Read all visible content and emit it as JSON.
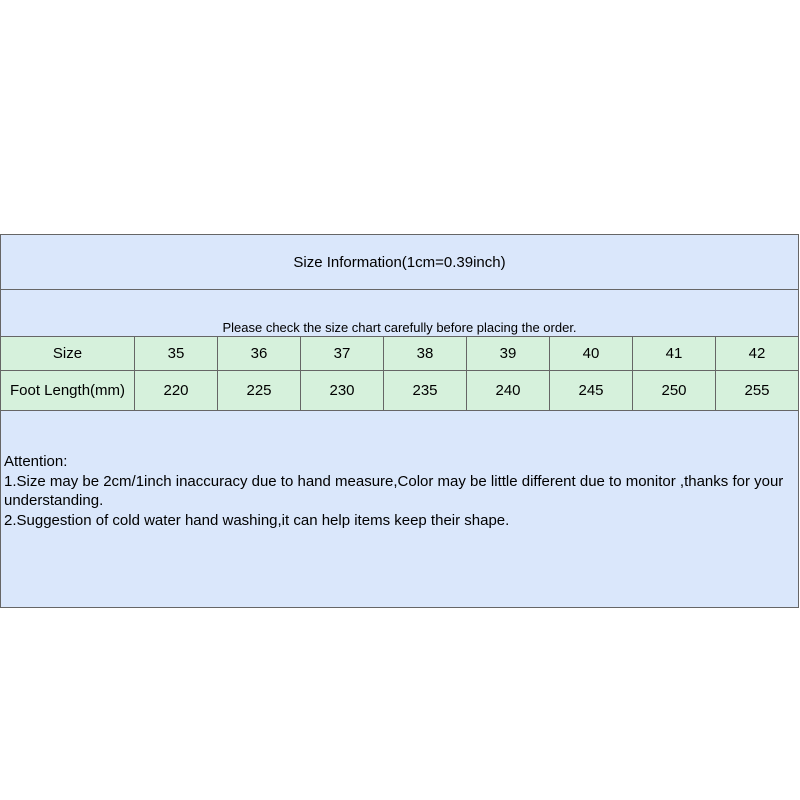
{
  "title": "Size Information(1cm=0.39inch)",
  "note": "Please check the size chart carefully before placing the order.",
  "rows": [
    {
      "label": "Size",
      "values": [
        "35",
        "36",
        "37",
        "38",
        "39",
        "40",
        "41",
        "42"
      ]
    },
    {
      "label": "Foot Length(mm)",
      "values": [
        "220",
        "225",
        "230",
        "235",
        "240",
        "245",
        "250",
        "255"
      ]
    }
  ],
  "attention": {
    "heading": "Attention:",
    "line1": "1.Size may be 2cm/1inch inaccuracy due to hand measure,Color may be little different due to monitor ,thanks for your understanding.",
    "line2": "2.Suggestion of cold water hand washing,it can help items keep their shape."
  },
  "colors": {
    "header_bg": "#dae7fb",
    "row_bg": "#d6f1dc"
  }
}
